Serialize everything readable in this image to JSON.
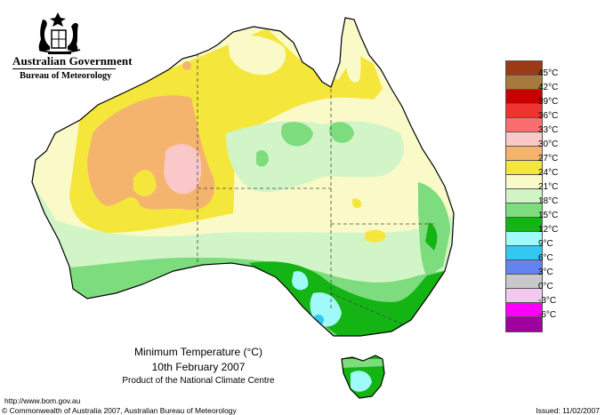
{
  "header": {
    "government": "Australian Government",
    "bureau": "Bureau of Meteorology",
    "crest_icon": "commonwealth-coat-of-arms-icon"
  },
  "map": {
    "title": "Minimum Temperature (°C)",
    "date": "10th February 2007",
    "product": "Product of the National Climate Centre"
  },
  "legend": {
    "items": [
      {
        "label": "45°C",
        "color": "#9b3a14"
      },
      {
        "label": "42°C",
        "color": "#a77a3c"
      },
      {
        "label": "39°C",
        "color": "#c80000"
      },
      {
        "label": "36°C",
        "color": "#f03232"
      },
      {
        "label": "33°C",
        "color": "#fa6e6e"
      },
      {
        "label": "30°C",
        "color": "#fac8c8"
      },
      {
        "label": "27°C",
        "color": "#f5b46e"
      },
      {
        "label": "24°C",
        "color": "#f5e63c"
      },
      {
        "label": "21°C",
        "color": "#fafac8"
      },
      {
        "label": "18°C",
        "color": "#d2f5c8"
      },
      {
        "label": "15°C",
        "color": "#7ddc7d"
      },
      {
        "label": "12°C",
        "color": "#14b414"
      },
      {
        "label": "9°C",
        "color": "#a0fafa"
      },
      {
        "label": "6°C",
        "color": "#32c8f0"
      },
      {
        "label": "3°C",
        "color": "#6482f0"
      },
      {
        "label": "0°C",
        "color": "#c8c8c8"
      },
      {
        "label": "-3°C",
        "color": "#f0c8f0"
      },
      {
        "label": "-6°C",
        "color": "#fa00fa"
      },
      {
        "label": "",
        "color": "#a000a0"
      }
    ]
  },
  "footer": {
    "url": "http://www.bom.gov.au",
    "copyright": "© Commonwealth of Australia 2007, Australian Bureau of Meteorology",
    "issued": "Issued: 11/02/2007"
  }
}
